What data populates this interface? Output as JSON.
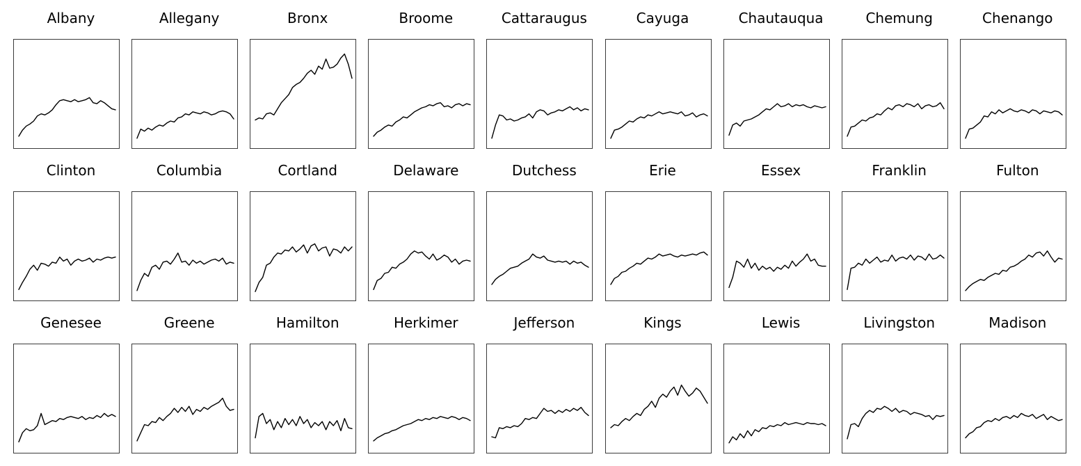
{
  "chart_data": {
    "type": "line",
    "layout": "small-multiples",
    "rows": 3,
    "columns": 9,
    "shared_ylim": [
      0,
      1
    ],
    "axes": "hidden",
    "grid": false,
    "line_color": "#000000",
    "panels": [
      {
        "title": "Albany",
        "values": [
          0.09,
          0.15,
          0.19,
          0.21,
          0.24,
          0.29,
          0.31,
          0.3,
          0.32,
          0.35,
          0.4,
          0.44,
          0.45,
          0.44,
          0.43,
          0.45,
          0.43,
          0.44,
          0.45,
          0.47,
          0.42,
          0.41,
          0.44,
          0.42,
          0.39,
          0.36,
          0.35
        ]
      },
      {
        "title": "Allegany",
        "values": [
          0.07,
          0.16,
          0.14,
          0.17,
          0.15,
          0.18,
          0.2,
          0.19,
          0.22,
          0.24,
          0.23,
          0.27,
          0.28,
          0.31,
          0.3,
          0.33,
          0.32,
          0.31,
          0.33,
          0.32,
          0.3,
          0.31,
          0.33,
          0.34,
          0.33,
          0.31,
          0.26
        ]
      },
      {
        "title": "Bronx",
        "values": [
          0.25,
          0.27,
          0.26,
          0.31,
          0.32,
          0.3,
          0.36,
          0.42,
          0.46,
          0.5,
          0.57,
          0.6,
          0.62,
          0.66,
          0.71,
          0.74,
          0.7,
          0.78,
          0.75,
          0.85,
          0.76,
          0.77,
          0.8,
          0.86,
          0.9,
          0.8,
          0.66
        ]
      },
      {
        "title": "Broome",
        "values": [
          0.09,
          0.13,
          0.15,
          0.18,
          0.2,
          0.19,
          0.23,
          0.25,
          0.28,
          0.27,
          0.3,
          0.33,
          0.35,
          0.37,
          0.38,
          0.4,
          0.39,
          0.41,
          0.42,
          0.38,
          0.39,
          0.37,
          0.4,
          0.41,
          0.39,
          0.41,
          0.4
        ]
      },
      {
        "title": "Cattaraugus",
        "values": [
          0.07,
          0.2,
          0.3,
          0.29,
          0.25,
          0.26,
          0.24,
          0.25,
          0.27,
          0.28,
          0.31,
          0.27,
          0.33,
          0.35,
          0.34,
          0.3,
          0.32,
          0.33,
          0.35,
          0.34,
          0.36,
          0.38,
          0.35,
          0.37,
          0.34,
          0.36,
          0.35
        ]
      },
      {
        "title": "Cayuga",
        "values": [
          0.07,
          0.15,
          0.16,
          0.18,
          0.21,
          0.24,
          0.23,
          0.26,
          0.28,
          0.27,
          0.3,
          0.29,
          0.31,
          0.33,
          0.31,
          0.32,
          0.33,
          0.32,
          0.31,
          0.33,
          0.29,
          0.3,
          0.32,
          0.28,
          0.3,
          0.31,
          0.29
        ]
      },
      {
        "title": "Chautauqua",
        "values": [
          0.1,
          0.2,
          0.22,
          0.19,
          0.24,
          0.25,
          0.26,
          0.28,
          0.3,
          0.33,
          0.36,
          0.35,
          0.38,
          0.41,
          0.38,
          0.39,
          0.41,
          0.38,
          0.4,
          0.39,
          0.4,
          0.38,
          0.37,
          0.39,
          0.38,
          0.37,
          0.38
        ]
      },
      {
        "title": "Chemung",
        "values": [
          0.09,
          0.18,
          0.19,
          0.22,
          0.25,
          0.24,
          0.27,
          0.28,
          0.31,
          0.3,
          0.34,
          0.37,
          0.35,
          0.39,
          0.4,
          0.38,
          0.41,
          0.4,
          0.38,
          0.41,
          0.36,
          0.39,
          0.4,
          0.38,
          0.39,
          0.42,
          0.36
        ]
      },
      {
        "title": "Chenango",
        "values": [
          0.07,
          0.16,
          0.17,
          0.2,
          0.23,
          0.29,
          0.28,
          0.33,
          0.31,
          0.35,
          0.32,
          0.34,
          0.36,
          0.34,
          0.33,
          0.35,
          0.34,
          0.32,
          0.35,
          0.34,
          0.31,
          0.34,
          0.33,
          0.32,
          0.34,
          0.33,
          0.3
        ]
      },
      {
        "title": "Clinton",
        "values": [
          0.08,
          0.15,
          0.21,
          0.28,
          0.32,
          0.27,
          0.34,
          0.33,
          0.31,
          0.35,
          0.34,
          0.4,
          0.36,
          0.38,
          0.32,
          0.36,
          0.38,
          0.36,
          0.37,
          0.39,
          0.35,
          0.38,
          0.37,
          0.39,
          0.4,
          0.39,
          0.4
        ]
      },
      {
        "title": "Columbia",
        "values": [
          0.07,
          0.17,
          0.24,
          0.21,
          0.3,
          0.32,
          0.28,
          0.35,
          0.36,
          0.33,
          0.38,
          0.44,
          0.35,
          0.36,
          0.32,
          0.37,
          0.34,
          0.36,
          0.33,
          0.35,
          0.37,
          0.38,
          0.36,
          0.39,
          0.33,
          0.35,
          0.34
        ]
      },
      {
        "title": "Cortland",
        "values": [
          0.06,
          0.15,
          0.2,
          0.32,
          0.34,
          0.4,
          0.44,
          0.43,
          0.47,
          0.46,
          0.5,
          0.45,
          0.48,
          0.52,
          0.44,
          0.51,
          0.53,
          0.46,
          0.49,
          0.5,
          0.41,
          0.48,
          0.47,
          0.44,
          0.5,
          0.46,
          0.5
        ]
      },
      {
        "title": "Delaware",
        "values": [
          0.08,
          0.17,
          0.19,
          0.24,
          0.25,
          0.3,
          0.29,
          0.33,
          0.35,
          0.38,
          0.43,
          0.46,
          0.44,
          0.45,
          0.41,
          0.38,
          0.43,
          0.37,
          0.39,
          0.42,
          0.4,
          0.35,
          0.38,
          0.33,
          0.36,
          0.37,
          0.36
        ]
      },
      {
        "title": "Dutchess",
        "values": [
          0.13,
          0.18,
          0.21,
          0.23,
          0.26,
          0.29,
          0.3,
          0.31,
          0.34,
          0.36,
          0.38,
          0.43,
          0.4,
          0.39,
          0.41,
          0.37,
          0.36,
          0.35,
          0.36,
          0.35,
          0.36,
          0.33,
          0.36,
          0.34,
          0.35,
          0.32,
          0.3
        ]
      },
      {
        "title": "Erie",
        "values": [
          0.13,
          0.19,
          0.21,
          0.25,
          0.26,
          0.29,
          0.31,
          0.34,
          0.33,
          0.36,
          0.39,
          0.38,
          0.4,
          0.43,
          0.41,
          0.42,
          0.43,
          0.41,
          0.4,
          0.42,
          0.41,
          0.42,
          0.43,
          0.42,
          0.44,
          0.45,
          0.42
        ]
      },
      {
        "title": "Essex",
        "values": [
          0.1,
          0.2,
          0.36,
          0.34,
          0.3,
          0.38,
          0.29,
          0.34,
          0.27,
          0.31,
          0.28,
          0.3,
          0.26,
          0.3,
          0.28,
          0.32,
          0.29,
          0.36,
          0.31,
          0.35,
          0.38,
          0.43,
          0.36,
          0.38,
          0.32,
          0.31,
          0.31
        ]
      },
      {
        "title": "Franklin",
        "values": [
          0.08,
          0.29,
          0.3,
          0.34,
          0.32,
          0.38,
          0.34,
          0.37,
          0.4,
          0.35,
          0.37,
          0.36,
          0.42,
          0.36,
          0.39,
          0.4,
          0.38,
          0.42,
          0.37,
          0.41,
          0.4,
          0.37,
          0.43,
          0.38,
          0.39,
          0.42,
          0.39
        ]
      },
      {
        "title": "Fulton",
        "values": [
          0.07,
          0.11,
          0.14,
          0.16,
          0.18,
          0.17,
          0.2,
          0.22,
          0.24,
          0.23,
          0.27,
          0.26,
          0.3,
          0.31,
          0.33,
          0.36,
          0.38,
          0.42,
          0.4,
          0.44,
          0.45,
          0.41,
          0.46,
          0.4,
          0.35,
          0.39,
          0.38
        ]
      },
      {
        "title": "Genesee",
        "values": [
          0.08,
          0.17,
          0.21,
          0.19,
          0.2,
          0.24,
          0.36,
          0.25,
          0.27,
          0.29,
          0.28,
          0.31,
          0.3,
          0.32,
          0.33,
          0.32,
          0.31,
          0.33,
          0.3,
          0.32,
          0.31,
          0.34,
          0.32,
          0.36,
          0.33,
          0.35,
          0.33
        ]
      },
      {
        "title": "Greene",
        "values": [
          0.09,
          0.17,
          0.25,
          0.24,
          0.28,
          0.27,
          0.32,
          0.29,
          0.33,
          0.36,
          0.41,
          0.37,
          0.42,
          0.38,
          0.43,
          0.35,
          0.4,
          0.38,
          0.42,
          0.4,
          0.43,
          0.45,
          0.47,
          0.51,
          0.43,
          0.39,
          0.4
        ]
      },
      {
        "title": "Hamilton",
        "values": [
          0.12,
          0.33,
          0.36,
          0.26,
          0.3,
          0.2,
          0.28,
          0.22,
          0.31,
          0.25,
          0.3,
          0.24,
          0.33,
          0.26,
          0.3,
          0.22,
          0.27,
          0.24,
          0.28,
          0.2,
          0.28,
          0.24,
          0.29,
          0.19,
          0.31,
          0.22,
          0.21
        ]
      },
      {
        "title": "Herkimer",
        "values": [
          0.09,
          0.12,
          0.14,
          0.16,
          0.17,
          0.19,
          0.2,
          0.22,
          0.24,
          0.25,
          0.26,
          0.28,
          0.3,
          0.29,
          0.31,
          0.3,
          0.32,
          0.31,
          0.33,
          0.32,
          0.31,
          0.33,
          0.32,
          0.3,
          0.32,
          0.31,
          0.29
        ]
      },
      {
        "title": "Jefferson",
        "values": [
          0.13,
          0.12,
          0.22,
          0.21,
          0.23,
          0.22,
          0.24,
          0.23,
          0.26,
          0.31,
          0.3,
          0.32,
          0.31,
          0.36,
          0.41,
          0.38,
          0.39,
          0.36,
          0.39,
          0.37,
          0.4,
          0.38,
          0.41,
          0.39,
          0.42,
          0.37,
          0.34
        ]
      },
      {
        "title": "Kings",
        "values": [
          0.22,
          0.25,
          0.24,
          0.28,
          0.31,
          0.29,
          0.33,
          0.36,
          0.34,
          0.4,
          0.43,
          0.48,
          0.42,
          0.51,
          0.55,
          0.52,
          0.58,
          0.62,
          0.54,
          0.64,
          0.58,
          0.53,
          0.56,
          0.61,
          0.58,
          0.52,
          0.46
        ]
      },
      {
        "title": "Lewis",
        "values": [
          0.07,
          0.13,
          0.1,
          0.16,
          0.12,
          0.19,
          0.14,
          0.2,
          0.18,
          0.22,
          0.21,
          0.24,
          0.23,
          0.25,
          0.24,
          0.27,
          0.25,
          0.26,
          0.27,
          0.26,
          0.25,
          0.27,
          0.26,
          0.26,
          0.25,
          0.26,
          0.24
        ]
      },
      {
        "title": "Livingston",
        "values": [
          0.11,
          0.25,
          0.26,
          0.23,
          0.31,
          0.36,
          0.39,
          0.37,
          0.41,
          0.4,
          0.43,
          0.41,
          0.38,
          0.41,
          0.37,
          0.39,
          0.38,
          0.35,
          0.37,
          0.36,
          0.35,
          0.33,
          0.34,
          0.3,
          0.34,
          0.33,
          0.34
        ]
      },
      {
        "title": "Madison",
        "values": [
          0.12,
          0.16,
          0.18,
          0.22,
          0.23,
          0.27,
          0.29,
          0.28,
          0.31,
          0.29,
          0.32,
          0.33,
          0.31,
          0.34,
          0.32,
          0.36,
          0.34,
          0.33,
          0.35,
          0.31,
          0.33,
          0.35,
          0.3,
          0.33,
          0.31,
          0.29,
          0.3
        ]
      }
    ]
  }
}
